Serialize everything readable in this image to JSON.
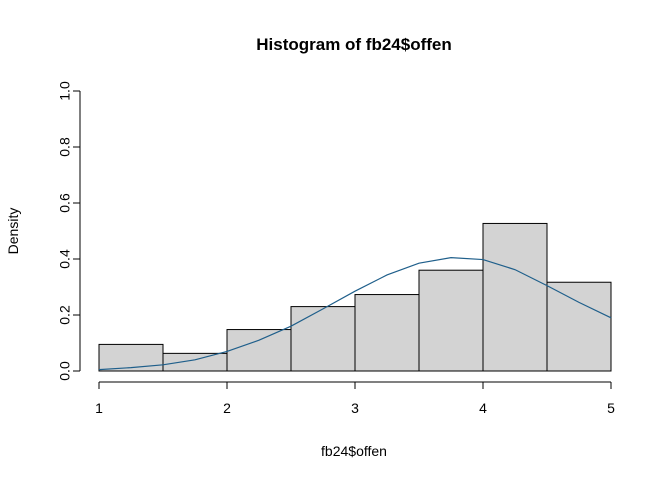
{
  "chart_data": {
    "type": "bar",
    "title": "Histogram of fb24$offen",
    "xlabel": "fb24$offen",
    "ylabel": "Density",
    "xlim": [
      1,
      5
    ],
    "ylim": [
      0,
      1
    ],
    "x_ticks": [
      "1",
      "2",
      "3",
      "4",
      "5"
    ],
    "y_ticks": [
      "0.0",
      "0.2",
      "0.4",
      "0.6",
      "0.8",
      "1.0"
    ],
    "bins": [
      {
        "start": 1.0,
        "end": 1.5,
        "density": 0.095
      },
      {
        "start": 1.5,
        "end": 2.0,
        "density": 0.063
      },
      {
        "start": 2.0,
        "end": 2.5,
        "density": 0.148
      },
      {
        "start": 2.5,
        "end": 3.0,
        "density": 0.23
      },
      {
        "start": 3.0,
        "end": 3.5,
        "density": 0.273
      },
      {
        "start": 3.5,
        "end": 4.0,
        "density": 0.36
      },
      {
        "start": 4.0,
        "end": 4.5,
        "density": 0.527
      },
      {
        "start": 4.5,
        "end": 5.0,
        "density": 0.317
      }
    ],
    "density_curve": {
      "x": [
        1.0,
        1.25,
        1.5,
        1.75,
        2.0,
        2.25,
        2.5,
        2.75,
        3.0,
        3.25,
        3.5,
        3.75,
        4.0,
        4.25,
        4.5,
        4.75,
        5.0
      ],
      "y": [
        0.005,
        0.012,
        0.022,
        0.04,
        0.07,
        0.11,
        0.16,
        0.222,
        0.285,
        0.343,
        0.385,
        0.405,
        0.398,
        0.362,
        0.305,
        0.245,
        0.19
      ]
    },
    "colors": {
      "bar_fill": "#d3d3d3",
      "bar_stroke": "#000000",
      "curve": "#1f5f8b"
    },
    "grid": false,
    "legend": "none"
  }
}
